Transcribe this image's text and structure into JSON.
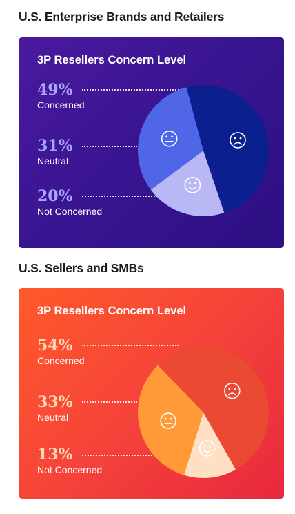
{
  "sections": [
    {
      "title": "U.S. Enterprise Brands and Retailers"
    },
    {
      "title": "U.S. Sellers and SMBs"
    }
  ],
  "chart_data": [
    {
      "type": "pie",
      "title": "3P Resellers Concern Level",
      "slices": [
        {
          "label": "Concerned",
          "value": 49,
          "value_label": "49%",
          "color": "#0b1f8f",
          "icon": "frown-face-icon"
        },
        {
          "label": "Not Concerned",
          "value": 20,
          "value_label": "20%",
          "color": "#b9b8f5",
          "icon": "smile-face-icon"
        },
        {
          "label": "Neutral",
          "value": 31,
          "value_label": "31%",
          "color": "#4f66e6",
          "icon": "neutral-face-icon"
        }
      ]
    },
    {
      "type": "pie",
      "title": "3P Resellers Concern Level",
      "slices": [
        {
          "label": "Concerned",
          "value": 54,
          "value_label": "54%",
          "color": "#ea4a32",
          "icon": "frown-face-icon"
        },
        {
          "label": "Not Concerned",
          "value": 13,
          "value_label": "13%",
          "color": "#ffe0c4",
          "icon": "smile-face-icon"
        },
        {
          "label": "Neutral",
          "value": 33,
          "value_label": "33%",
          "color": "#ff9a36",
          "icon": "neutral-face-icon"
        }
      ]
    }
  ]
}
